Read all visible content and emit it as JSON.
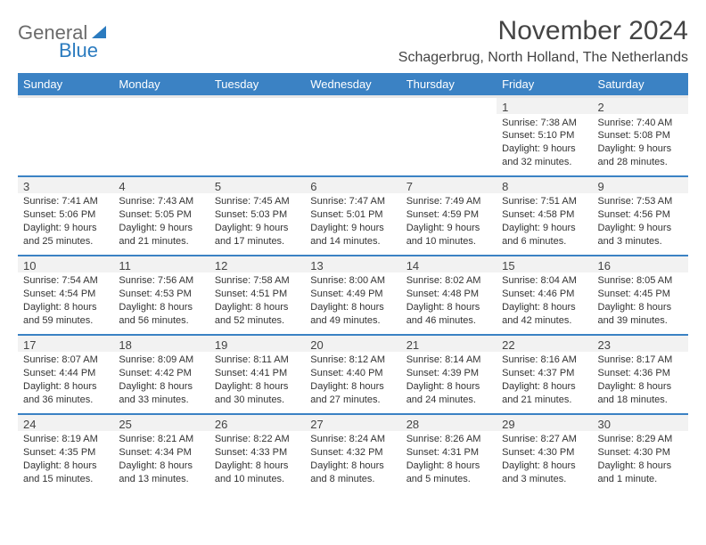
{
  "brand": {
    "part1": "General",
    "part2": "Blue"
  },
  "title": "November 2024",
  "location": "Schagerbrug, North Holland, The Netherlands",
  "colors": {
    "accent": "#3b82c4",
    "header_bg": "#3b82c4",
    "header_text": "#ffffff"
  },
  "day_headers": [
    "Sunday",
    "Monday",
    "Tuesday",
    "Wednesday",
    "Thursday",
    "Friday",
    "Saturday"
  ],
  "weeks": [
    [
      null,
      null,
      null,
      null,
      null,
      {
        "d": "1",
        "sr": "Sunrise: 7:38 AM",
        "ss": "Sunset: 5:10 PM",
        "dl": "Daylight: 9 hours and 32 minutes."
      },
      {
        "d": "2",
        "sr": "Sunrise: 7:40 AM",
        "ss": "Sunset: 5:08 PM",
        "dl": "Daylight: 9 hours and 28 minutes."
      }
    ],
    [
      {
        "d": "3",
        "sr": "Sunrise: 7:41 AM",
        "ss": "Sunset: 5:06 PM",
        "dl": "Daylight: 9 hours and 25 minutes."
      },
      {
        "d": "4",
        "sr": "Sunrise: 7:43 AM",
        "ss": "Sunset: 5:05 PM",
        "dl": "Daylight: 9 hours and 21 minutes."
      },
      {
        "d": "5",
        "sr": "Sunrise: 7:45 AM",
        "ss": "Sunset: 5:03 PM",
        "dl": "Daylight: 9 hours and 17 minutes."
      },
      {
        "d": "6",
        "sr": "Sunrise: 7:47 AM",
        "ss": "Sunset: 5:01 PM",
        "dl": "Daylight: 9 hours and 14 minutes."
      },
      {
        "d": "7",
        "sr": "Sunrise: 7:49 AM",
        "ss": "Sunset: 4:59 PM",
        "dl": "Daylight: 9 hours and 10 minutes."
      },
      {
        "d": "8",
        "sr": "Sunrise: 7:51 AM",
        "ss": "Sunset: 4:58 PM",
        "dl": "Daylight: 9 hours and 6 minutes."
      },
      {
        "d": "9",
        "sr": "Sunrise: 7:53 AM",
        "ss": "Sunset: 4:56 PM",
        "dl": "Daylight: 9 hours and 3 minutes."
      }
    ],
    [
      {
        "d": "10",
        "sr": "Sunrise: 7:54 AM",
        "ss": "Sunset: 4:54 PM",
        "dl": "Daylight: 8 hours and 59 minutes."
      },
      {
        "d": "11",
        "sr": "Sunrise: 7:56 AM",
        "ss": "Sunset: 4:53 PM",
        "dl": "Daylight: 8 hours and 56 minutes."
      },
      {
        "d": "12",
        "sr": "Sunrise: 7:58 AM",
        "ss": "Sunset: 4:51 PM",
        "dl": "Daylight: 8 hours and 52 minutes."
      },
      {
        "d": "13",
        "sr": "Sunrise: 8:00 AM",
        "ss": "Sunset: 4:49 PM",
        "dl": "Daylight: 8 hours and 49 minutes."
      },
      {
        "d": "14",
        "sr": "Sunrise: 8:02 AM",
        "ss": "Sunset: 4:48 PM",
        "dl": "Daylight: 8 hours and 46 minutes."
      },
      {
        "d": "15",
        "sr": "Sunrise: 8:04 AM",
        "ss": "Sunset: 4:46 PM",
        "dl": "Daylight: 8 hours and 42 minutes."
      },
      {
        "d": "16",
        "sr": "Sunrise: 8:05 AM",
        "ss": "Sunset: 4:45 PM",
        "dl": "Daylight: 8 hours and 39 minutes."
      }
    ],
    [
      {
        "d": "17",
        "sr": "Sunrise: 8:07 AM",
        "ss": "Sunset: 4:44 PM",
        "dl": "Daylight: 8 hours and 36 minutes."
      },
      {
        "d": "18",
        "sr": "Sunrise: 8:09 AM",
        "ss": "Sunset: 4:42 PM",
        "dl": "Daylight: 8 hours and 33 minutes."
      },
      {
        "d": "19",
        "sr": "Sunrise: 8:11 AM",
        "ss": "Sunset: 4:41 PM",
        "dl": "Daylight: 8 hours and 30 minutes."
      },
      {
        "d": "20",
        "sr": "Sunrise: 8:12 AM",
        "ss": "Sunset: 4:40 PM",
        "dl": "Daylight: 8 hours and 27 minutes."
      },
      {
        "d": "21",
        "sr": "Sunrise: 8:14 AM",
        "ss": "Sunset: 4:39 PM",
        "dl": "Daylight: 8 hours and 24 minutes."
      },
      {
        "d": "22",
        "sr": "Sunrise: 8:16 AM",
        "ss": "Sunset: 4:37 PM",
        "dl": "Daylight: 8 hours and 21 minutes."
      },
      {
        "d": "23",
        "sr": "Sunrise: 8:17 AM",
        "ss": "Sunset: 4:36 PM",
        "dl": "Daylight: 8 hours and 18 minutes."
      }
    ],
    [
      {
        "d": "24",
        "sr": "Sunrise: 8:19 AM",
        "ss": "Sunset: 4:35 PM",
        "dl": "Daylight: 8 hours and 15 minutes."
      },
      {
        "d": "25",
        "sr": "Sunrise: 8:21 AM",
        "ss": "Sunset: 4:34 PM",
        "dl": "Daylight: 8 hours and 13 minutes."
      },
      {
        "d": "26",
        "sr": "Sunrise: 8:22 AM",
        "ss": "Sunset: 4:33 PM",
        "dl": "Daylight: 8 hours and 10 minutes."
      },
      {
        "d": "27",
        "sr": "Sunrise: 8:24 AM",
        "ss": "Sunset: 4:32 PM",
        "dl": "Daylight: 8 hours and 8 minutes."
      },
      {
        "d": "28",
        "sr": "Sunrise: 8:26 AM",
        "ss": "Sunset: 4:31 PM",
        "dl": "Daylight: 8 hours and 5 minutes."
      },
      {
        "d": "29",
        "sr": "Sunrise: 8:27 AM",
        "ss": "Sunset: 4:30 PM",
        "dl": "Daylight: 8 hours and 3 minutes."
      },
      {
        "d": "30",
        "sr": "Sunrise: 8:29 AM",
        "ss": "Sunset: 4:30 PM",
        "dl": "Daylight: 8 hours and 1 minute."
      }
    ]
  ]
}
